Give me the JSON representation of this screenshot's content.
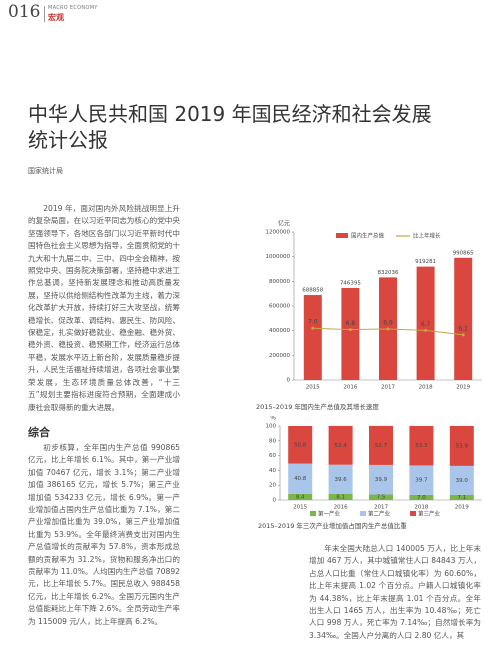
{
  "header": {
    "page_number": "016",
    "section_en": "MACRO ECONOMY",
    "section": "宏观"
  },
  "article": {
    "title": [
      "中华人民共和国 2019 年国民经济和社会发展",
      "统计公报"
    ],
    "author": "国家统计局",
    "intro": "2019 年，面对国内外风险挑战明显上升的复杂局面，在以习近平同志为核心的党中央坚强领导下，各地区各部门以习近平新时代中国特色社会主义思想为指导，全面贯彻党的十九大和十九届二中、三中、四中全会精神，按照党中央、国务院决策部署，坚持稳中求进工作总基调，坚持新发展理念和推动高质量发展，坚持以供给侧结构性改革为主线，着力深化改革扩大开放，持续打好三大攻坚战，统筹稳增长、促改革、调结构、惠民生、防风险、保稳定，扎实做好稳就业、稳金融、稳外贸、稳外资、稳投资、稳预期工作，经济运行总体平稳，发展水平迈上新台阶，发展质量稳步提升，人民生活福祉持续增进，各项社会事业繁荣发展，生态环境质量总体改善，“十三五”规划主要指标进度符合预期，全面建成小康社会取得新的重大进展。",
    "heading": "综合",
    "section_text": "初步核算，全年国内生产总值 990865 亿元，比上年增长 6.1%。其中，第一产业增加值 70467 亿元，增长 3.1%；第二产业增加值 386165 亿元，增长 5.7%；第三产业增加值 534233 亿元，增长 6.9%。第一产业增加值占国内生产总值比重为 7.1%，第二产业增加值比重为 39.0%，第三产业增加值比重为 53.9%。全年最终消费支出对国内生产总值增长的贡献率为 57.8%，资本形成总额的贡献率为 31.2%，货物和服务净出口的贡献率为 11.0%。人均国内生产总值 70892 元，比上年增长 5.7%。国民总收入 988458 亿元，比上年增长 6.2%。全国万元国内生产总值能耗比上年下降 2.6%。全员劳动生产率为 115009 元/人，比上年提高 6.2%。",
    "right_text": "年末全国大陆总人口 140005 万人，比上年末增加 467 万人，其中城镇常住人口 84843 万人，占总人口比重（常住人口城镇化率）为 60.60%，比上年末提高 1.02 个百分点。户籍人口城镇化率为 44.38%，比上年末提高 1.01 个百分点。全年出生人口 1465 万人，出生率为 10.48‰；死亡人口 998 万人，死亡率为 7.14‰；自然增长率为 3.34‰。全国人户分离的人口 2.80 亿人，其"
  },
  "chart_data": [
    {
      "type": "bar_line",
      "unit": "亿元",
      "caption": "2015–2019 年国内生产总值及其增长速度",
      "categories": [
        "2015",
        "2016",
        "2017",
        "2018",
        "2019"
      ],
      "series": [
        {
          "name": "国内生产总值",
          "color": "#d9473f",
          "values": [
            688858,
            746395,
            832036,
            919281,
            990865
          ]
        },
        {
          "name": "比上年增长",
          "color": "#c9a640",
          "axis": "y2",
          "values": [
            7,
            6.8,
            6.9,
            6.7,
            6.1
          ],
          "value_labels": [
            "7.0",
            "6.8",
            "6.9",
            "6.7",
            "6.1"
          ]
        }
      ],
      "ylim": [
        0,
        1200000
      ],
      "yticks": [
        0,
        200000,
        400000,
        600000,
        800000,
        1000000,
        1200000
      ],
      "y2lim": [
        0,
        20
      ]
    },
    {
      "type": "stacked_bar",
      "unit": "%",
      "caption": "2015–2019 年三次产业增加值占国内生产总值比重",
      "categories": [
        "2015",
        "2016",
        "2017",
        "2018",
        "2019"
      ],
      "series": [
        {
          "name": "第一产业",
          "color": "#7ab648",
          "values": [
            8.4,
            8.1,
            7.5,
            7,
            7.1
          ],
          "value_labels": [
            "8.4",
            "8.1",
            "7.5",
            "7.0",
            "7.1"
          ]
        },
        {
          "name": "第二产业",
          "color": "#a9c5ea",
          "values": [
            40.8,
            39.6,
            39.9,
            39.7,
            39
          ],
          "value_labels": [
            "40.8",
            "39.6",
            "39.9",
            "39.7",
            "39.0"
          ]
        },
        {
          "name": "第三产业",
          "color": "#d9473f",
          "values": [
            50.8,
            52.4,
            52.7,
            53.3,
            53.9
          ],
          "value_labels": [
            "50.8",
            "52.4",
            "52.7",
            "53.3",
            "53.9"
          ]
        }
      ],
      "ylim": [
        0,
        100
      ],
      "yticks": [
        0,
        20,
        40,
        60,
        80,
        100
      ]
    }
  ]
}
